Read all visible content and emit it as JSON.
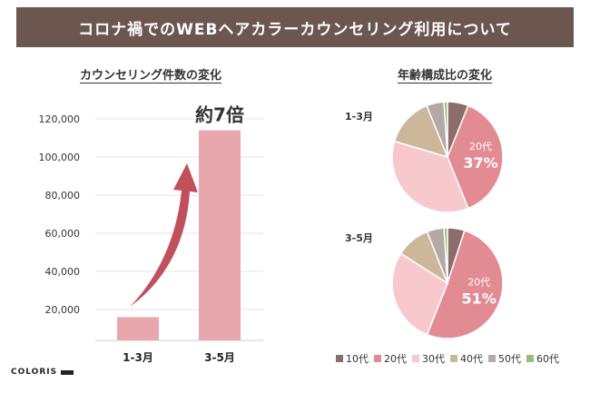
{
  "title": "コロナ禍でのWEBヘアカラーカウンセリング利用について",
  "brand": "COLORIS",
  "colors": {
    "title_bar": "#6b5750",
    "bar": "#e8a6ad",
    "arrow": "#c0505c"
  },
  "chart_data": [
    {
      "type": "bar",
      "title": "カウンセリング件数の変化",
      "categories": [
        "1-3月",
        "3-5月"
      ],
      "values": [
        16000,
        114000
      ],
      "ylim": [
        0,
        120000
      ],
      "yticks": [
        20000,
        40000,
        60000,
        80000,
        100000,
        120000
      ],
      "ytick_labels": [
        "20,000",
        "40,000",
        "60,000",
        "80,000",
        "100,000",
        "120,000"
      ],
      "annotation": "約7倍",
      "grid": true
    },
    {
      "type": "pie",
      "title": "年齢構成比の変化",
      "legend": [
        "10代",
        "20代",
        "30代",
        "40代",
        "50代",
        "60代"
      ],
      "legend_colors": [
        "#8c6d6b",
        "#e28b92",
        "#f7c9cc",
        "#cdb79a",
        "#b3aaa6",
        "#8cc46f"
      ],
      "legend_position": "bottom",
      "series": [
        {
          "name": "1-3月",
          "values": [
            6,
            37,
            35,
            14,
            5,
            1
          ],
          "highlight_label": "20代",
          "highlight_value": "37%"
        },
        {
          "name": "3-5月",
          "values": [
            5,
            51,
            28,
            10,
            5,
            1
          ],
          "highlight_label": "20代",
          "highlight_value": "51%"
        }
      ]
    }
  ]
}
